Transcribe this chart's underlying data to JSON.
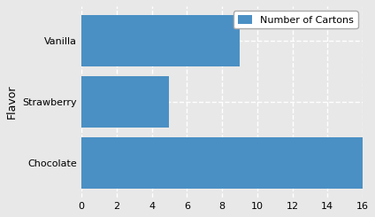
{
  "flavors": [
    "Chocolate",
    "Strawberry",
    "Vanilla"
  ],
  "values": [
    16,
    5,
    9
  ],
  "bar_color": "#4a90c4",
  "xlabel": "",
  "ylabel": "Flavor",
  "legend_label": "Number of Cartons",
  "xlim": [
    0,
    16
  ],
  "xticks": [
    0,
    2,
    4,
    6,
    8,
    10,
    12,
    14,
    16
  ],
  "background_color": "#e8e8e8",
  "grid_color": "white",
  "title": ""
}
